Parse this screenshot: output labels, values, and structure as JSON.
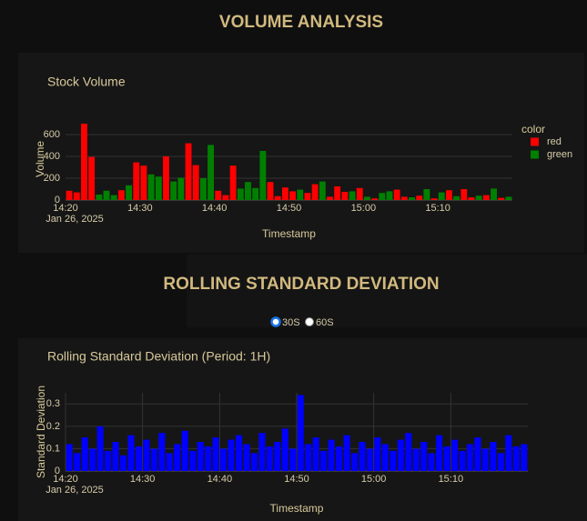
{
  "headings": [
    "VOLUME ANALYSIS",
    "ROLLING STANDARD DEVIATION"
  ],
  "period_selector": {
    "options": [
      "30S",
      "60S"
    ],
    "selected": "30S"
  },
  "chart_data": [
    {
      "type": "bar",
      "title": "Stock Volume",
      "x_label": "Timestamp",
      "y_label": "Volume",
      "date_label": "Jan 26, 2025",
      "xlim": [
        "14:20",
        "15:20"
      ],
      "xticks": [
        "14:20",
        "14:30",
        "14:40",
        "14:50",
        "15:00",
        "15:10"
      ],
      "ylim": [
        0,
        750
      ],
      "yticks": [
        0,
        200,
        400,
        600
      ],
      "grid": {
        "x": false,
        "y": true
      },
      "legend": "right",
      "legend_title": "color",
      "series": [
        {
          "name": "red",
          "color": "#ff0000",
          "x": [
            "14:20",
            "14:21",
            "14:22",
            "14:23",
            "14:27",
            "14:29",
            "14:30",
            "14:33",
            "14:36",
            "14:37",
            "14:40",
            "14:41",
            "14:42",
            "14:47",
            "14:48",
            "14:49",
            "14:50",
            "14:52",
            "14:53",
            "14:55",
            "14:56",
            "14:57",
            "14:59",
            "15:01",
            "15:04",
            "15:05",
            "15:07",
            "15:09",
            "15:11",
            "15:13",
            "15:14",
            "15:16",
            "15:18"
          ],
          "values": [
            85,
            70,
            700,
            395,
            90,
            345,
            315,
            400,
            520,
            320,
            85,
            45,
            315,
            165,
            35,
            115,
            80,
            65,
            145,
            30,
            125,
            75,
            110,
            15,
            95,
            30,
            40,
            15,
            90,
            100,
            25,
            45,
            20
          ]
        },
        {
          "name": "green",
          "color": "#008000",
          "x": [
            "14:24",
            "14:25",
            "14:26",
            "14:28",
            "14:31",
            "14:32",
            "14:34",
            "14:35",
            "14:38",
            "14:39",
            "14:43",
            "14:44",
            "14:45",
            "14:46",
            "14:51",
            "14:54",
            "14:58",
            "15:00",
            "15:02",
            "15:03",
            "15:06",
            "15:08",
            "15:10",
            "15:12",
            "15:15",
            "15:17",
            "15:19"
          ],
          "values": [
            50,
            85,
            45,
            135,
            235,
            215,
            170,
            205,
            200,
            505,
            105,
            165,
            110,
            450,
            95,
            170,
            80,
            30,
            65,
            80,
            25,
            100,
            70,
            35,
            40,
            105,
            30
          ]
        }
      ]
    },
    {
      "type": "bar",
      "title": "Rolling Standard Deviation (Period: 1H)",
      "x_label": "Timestamp",
      "y_label": "Standard Deviation",
      "date_label": "Jan 26, 2025",
      "xlim": [
        "14:20",
        "15:20"
      ],
      "xticks": [
        "14:20",
        "14:30",
        "14:40",
        "14:50",
        "15:00",
        "15:10"
      ],
      "ylim": [
        0,
        0.35
      ],
      "yticks": [
        0,
        0.1,
        0.2,
        0.3
      ],
      "grid": {
        "x": true,
        "y": true
      },
      "color": "#0000ff",
      "x": [
        "14:20",
        "14:21",
        "14:22",
        "14:23",
        "14:24",
        "14:25",
        "14:26",
        "14:27",
        "14:28",
        "14:29",
        "14:30",
        "14:31",
        "14:32",
        "14:33",
        "14:34",
        "14:35",
        "14:36",
        "14:37",
        "14:38",
        "14:39",
        "14:40",
        "14:41",
        "14:42",
        "14:43",
        "14:44",
        "14:45",
        "14:46",
        "14:47",
        "14:48",
        "14:49",
        "14:50",
        "14:51",
        "14:52",
        "14:53",
        "14:54",
        "14:55",
        "14:56",
        "14:57",
        "14:58",
        "14:59",
        "15:00",
        "15:01",
        "15:02",
        "15:03",
        "15:04",
        "15:05",
        "15:06",
        "15:07",
        "15:08",
        "15:09",
        "15:10",
        "15:11",
        "15:12",
        "15:13",
        "15:14",
        "15:15",
        "15:16",
        "15:17",
        "15:18",
        "15:19"
      ],
      "values": [
        0.12,
        0.08,
        0.15,
        0.1,
        0.2,
        0.09,
        0.13,
        0.07,
        0.16,
        0.11,
        0.14,
        0.1,
        0.17,
        0.08,
        0.12,
        0.18,
        0.09,
        0.13,
        0.11,
        0.15,
        0.1,
        0.14,
        0.16,
        0.12,
        0.08,
        0.17,
        0.11,
        0.13,
        0.19,
        0.1,
        0.34,
        0.12,
        0.15,
        0.09,
        0.14,
        0.11,
        0.16,
        0.08,
        0.13,
        0.1,
        0.15,
        0.12,
        0.09,
        0.14,
        0.17,
        0.1,
        0.13,
        0.08,
        0.16,
        0.11,
        0.14,
        0.09,
        0.12,
        0.15,
        0.1,
        0.13,
        0.08,
        0.16,
        0.11,
        0.12
      ]
    }
  ]
}
